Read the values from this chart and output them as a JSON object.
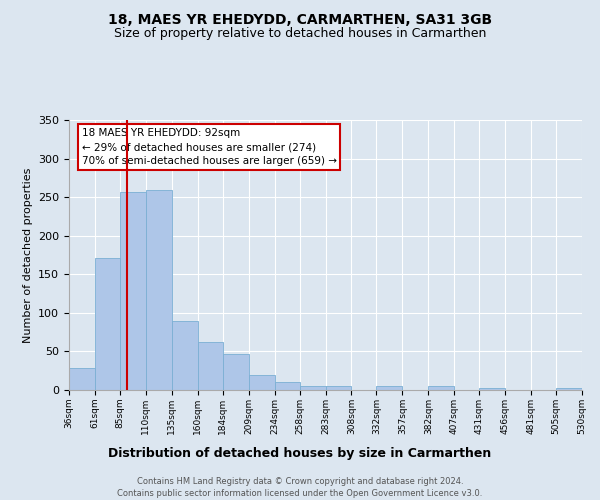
{
  "title": "18, MAES YR EHEDYDD, CARMARTHEN, SA31 3GB",
  "subtitle": "Size of property relative to detached houses in Carmarthen",
  "xlabel": "Distribution of detached houses by size in Carmarthen",
  "ylabel": "Number of detached properties",
  "bar_values": [
    29,
    171,
    257,
    259,
    89,
    62,
    47,
    20,
    10,
    5,
    5,
    0,
    5,
    0,
    5,
    0,
    2,
    0,
    0,
    2
  ],
  "bin_labels": [
    "36sqm",
    "61sqm",
    "85sqm",
    "110sqm",
    "135sqm",
    "160sqm",
    "184sqm",
    "209sqm",
    "234sqm",
    "258sqm",
    "283sqm",
    "308sqm",
    "332sqm",
    "357sqm",
    "382sqm",
    "407sqm",
    "431sqm",
    "456sqm",
    "481sqm",
    "505sqm",
    "530sqm"
  ],
  "bin_edges": [
    36,
    61,
    85,
    110,
    135,
    160,
    184,
    209,
    234,
    258,
    283,
    308,
    332,
    357,
    382,
    407,
    431,
    456,
    481,
    505,
    530
  ],
  "bar_color": "#aec6e8",
  "bar_edge_color": "#7bafd4",
  "property_line_x": 92,
  "property_line_color": "#cc0000",
  "annotation_line1": "18 MAES YR EHEDYDD: 92sqm",
  "annotation_line2": "← 29% of detached houses are smaller (274)",
  "annotation_line3": "70% of semi-detached houses are larger (659) →",
  "annotation_box_color": "#ffffff",
  "annotation_box_edge": "#cc0000",
  "ylim": [
    0,
    350
  ],
  "yticks": [
    0,
    50,
    100,
    150,
    200,
    250,
    300,
    350
  ],
  "footer_line1": "Contains HM Land Registry data © Crown copyright and database right 2024.",
  "footer_line2": "Contains public sector information licensed under the Open Government Licence v3.0.",
  "background_color": "#dce6f0",
  "plot_bg_color": "#dce6f0",
  "title_fontsize": 10,
  "subtitle_fontsize": 9,
  "ylabel_fontsize": 8,
  "xlabel_fontsize": 9,
  "xtick_fontsize": 6.5,
  "ytick_fontsize": 8
}
